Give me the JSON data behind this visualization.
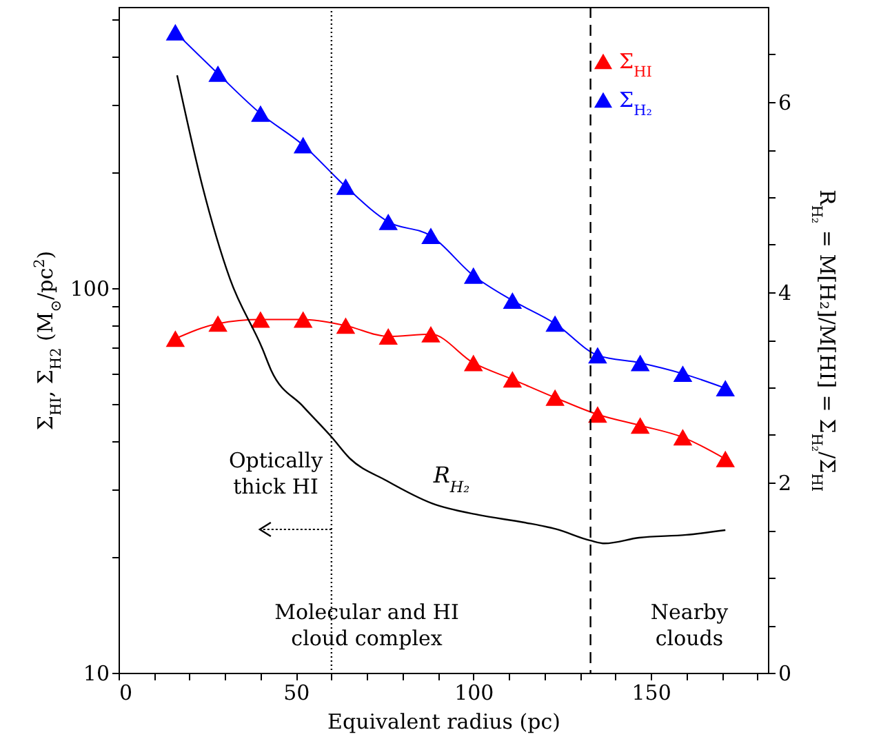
{
  "chart_data": {
    "type": "line",
    "xlabel": "Equivalent radius (pc)",
    "ylabel": "Σ$_{HI}$, Σ$_{H2}$ (M$_{⊙}$/pc$^{2}$)",
    "y2label": "R$_{H₂}$ = M[H₂]/M[HI] = Σ$_{H₂}$/Σ$_{HI}$",
    "xlim": [
      0,
      183
    ],
    "xticks": [
      0,
      {
        "value": 10,
        "label": null
      },
      {
        "value": 20,
        "label": null
      },
      {
        "value": 30,
        "label": null
      },
      {
        "value": 40,
        "label": null
      },
      50,
      {
        "value": 60,
        "label": null
      },
      {
        "value": 70,
        "label": null
      },
      {
        "value": 80,
        "label": null
      },
      {
        "value": 90,
        "label": null
      },
      100,
      {
        "value": 110,
        "label": null
      },
      {
        "value": 120,
        "label": null
      },
      {
        "value": 130,
        "label": null
      },
      {
        "value": 140,
        "label": null
      },
      150,
      {
        "value": 160,
        "label": null
      },
      {
        "value": 170,
        "label": null
      },
      {
        "value": 180,
        "label": null
      }
    ],
    "ylim": [
      10,
      540
    ],
    "yticks": [
      10,
      {
        "value": 20,
        "label": null
      },
      {
        "value": 30,
        "label": null
      },
      {
        "value": 40,
        "label": null
      },
      {
        "value": 50,
        "label": null
      },
      {
        "value": 60,
        "label": null
      },
      {
        "value": 70,
        "label": null
      },
      {
        "value": 80,
        "label": null
      },
      {
        "value": 90,
        "label": null
      },
      100,
      {
        "value": 200,
        "label": null
      },
      {
        "value": 300,
        "label": null
      },
      {
        "value": 400,
        "label": null
      },
      {
        "value": 500,
        "label": null
      }
    ],
    "log": "y",
    "y2lim": [
      0,
      7
    ],
    "y2ticks": [
      0,
      {
        "value": 0.5,
        "label": null
      },
      {
        "value": 1,
        "label": null
      },
      {
        "value": 1.5,
        "label": null
      },
      2,
      {
        "value": 2.5,
        "label": null
      },
      {
        "value": 3,
        "label": null
      },
      {
        "value": 3.5,
        "label": null
      },
      4,
      {
        "value": 4.5,
        "label": null
      },
      {
        "value": 5,
        "label": null
      },
      {
        "value": 5.5,
        "label": null
      },
      6,
      {
        "value": 6.5,
        "label": null
      }
    ],
    "marker": "triangle",
    "line_style": "solid",
    "legend": "top right",
    "grid": false,
    "series": [
      {
        "name": "Σ$_{HI}$",
        "color": "#ff0000",
        "x": [
          16,
          28,
          40,
          52,
          64,
          76,
          88,
          100,
          111,
          123,
          135,
          147,
          159,
          171
        ],
        "values": [
          74,
          81,
          83,
          83,
          80,
          75,
          76,
          64,
          58,
          52,
          47,
          44,
          41,
          36
        ]
      },
      {
        "name": "Σ$_{H₂}$",
        "color": "#0000ff",
        "x": [
          16,
          28,
          40,
          52,
          64,
          76,
          88,
          100,
          111,
          123,
          135,
          147,
          159,
          171
        ],
        "values": [
          464,
          362,
          285,
          236,
          184,
          149,
          137,
          108,
          93,
          81,
          67,
          64,
          60,
          55
        ]
      },
      {
        "name": "R$_{H₂}$",
        "color": "#000000",
        "axis": "y2",
        "marker": "none",
        "x": [
          16.5,
          23.6,
          31.4,
          40.5,
          43,
          52,
          60,
          65,
          75.5,
          88.4,
          101.4,
          114.4,
          123.4,
          133,
          137,
          146.7,
          160,
          171
        ],
        "values": [
          6.28,
          5.12,
          4.14,
          3.41,
          3.18,
          2.8,
          2.48,
          2.26,
          2.02,
          1.78,
          1.66,
          1.58,
          1.51,
          1.39,
          1.36,
          1.42,
          1.45,
          1.5
        ]
      }
    ],
    "ref_lines": [
      {
        "axis": "x",
        "value": 60,
        "line_style": "dotted",
        "color": "#000000"
      },
      {
        "axis": "x",
        "value": 133,
        "line_style": "dashed",
        "color": "#000000"
      }
    ],
    "annotations": [
      "Optically\nthick HI",
      "Molecular and HI\ncloud complex",
      "Nearby\nclouds"
    ]
  }
}
